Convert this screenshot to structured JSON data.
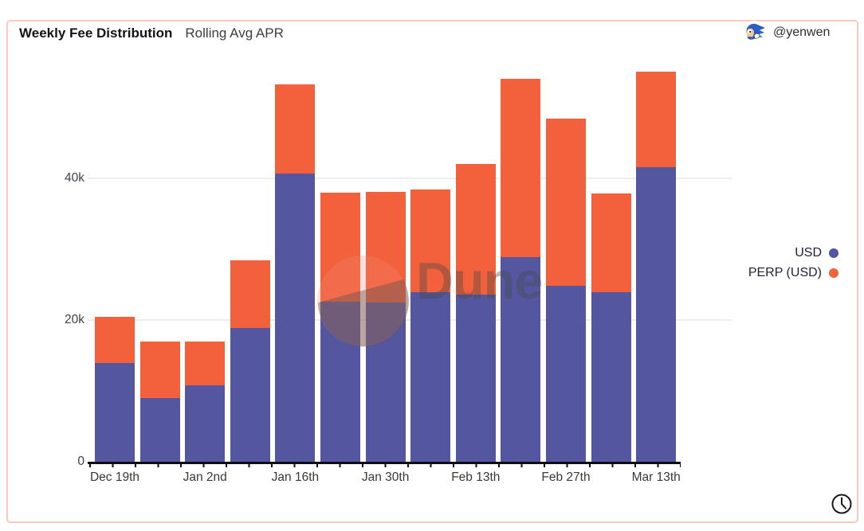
{
  "header": {
    "author_handle": "@yenwen",
    "avatar_icon": "sonic-avatar-icon"
  },
  "watermark": {
    "text": "Dune",
    "logo_icon": "dune-crescent-logo-icon"
  },
  "footer": {
    "clock_icon": "clock-icon"
  },
  "chart_data": {
    "type": "bar",
    "stacked": true,
    "title": "Weekly Fee Distribution",
    "subtitle": "Rolling Avg APR",
    "unit": "thousands of USD",
    "categories": [
      "Dec 19th",
      "",
      "Jan 2nd",
      "",
      "Jan 16th",
      "",
      "Jan 30th",
      "",
      "Feb 13th",
      "",
      "Feb 27th",
      "",
      "Mar 13th"
    ],
    "series": [
      {
        "name": "USD",
        "color": "#5457a0",
        "values": [
          13.9,
          9.0,
          10.8,
          18.9,
          40.7,
          22.6,
          22.5,
          23.9,
          23.6,
          28.9,
          24.8,
          23.9,
          41.6
        ]
      },
      {
        "name": "PERP (USD)",
        "color": "#f2613c",
        "values": [
          6.5,
          8.0,
          6.2,
          9.5,
          12.6,
          15.4,
          15.6,
          14.5,
          18.4,
          25.1,
          23.6,
          14.0,
          13.5
        ]
      }
    ],
    "stack_totals": [
      20.4,
      17.0,
      17.0,
      28.4,
      53.3,
      38.0,
      38.1,
      38.4,
      42.0,
      54.0,
      48.4,
      37.9,
      55.1
    ],
    "y_ticks": [
      {
        "label": "0",
        "value": 0
      },
      {
        "label": "20k",
        "value": 20
      },
      {
        "label": "40k",
        "value": 40
      }
    ],
    "ylim": [
      0,
      55.6
    ],
    "grid": "horizontal",
    "legend_position": "right"
  }
}
